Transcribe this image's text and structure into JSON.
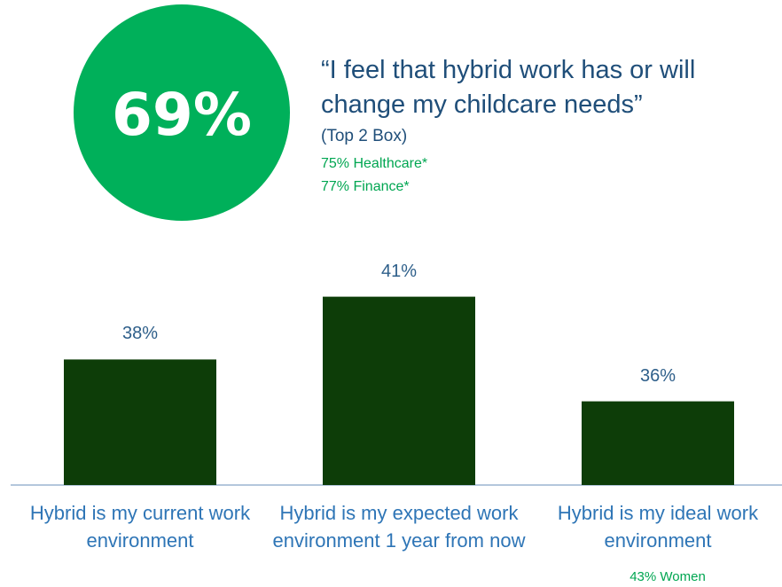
{
  "header": {
    "big_stat": "69%",
    "quote": "“I feel that hybrid work has or will change my childcare needs”",
    "note": "(Top 2 Box)",
    "details": [
      "75% Healthcare*",
      "77% Finance*"
    ]
  },
  "chart_data": {
    "type": "bar",
    "categories": [
      "Hybrid is my current work environment",
      "Hybrid is my expected work environment 1 year from now",
      "Hybrid is my ideal work environment"
    ],
    "values": [
      38,
      41,
      36
    ],
    "value_labels": [
      "38%",
      "41%",
      "36%"
    ],
    "color": "#0d3d08",
    "ylim": [
      32,
      42
    ],
    "annotations": [
      "43% Women"
    ]
  }
}
